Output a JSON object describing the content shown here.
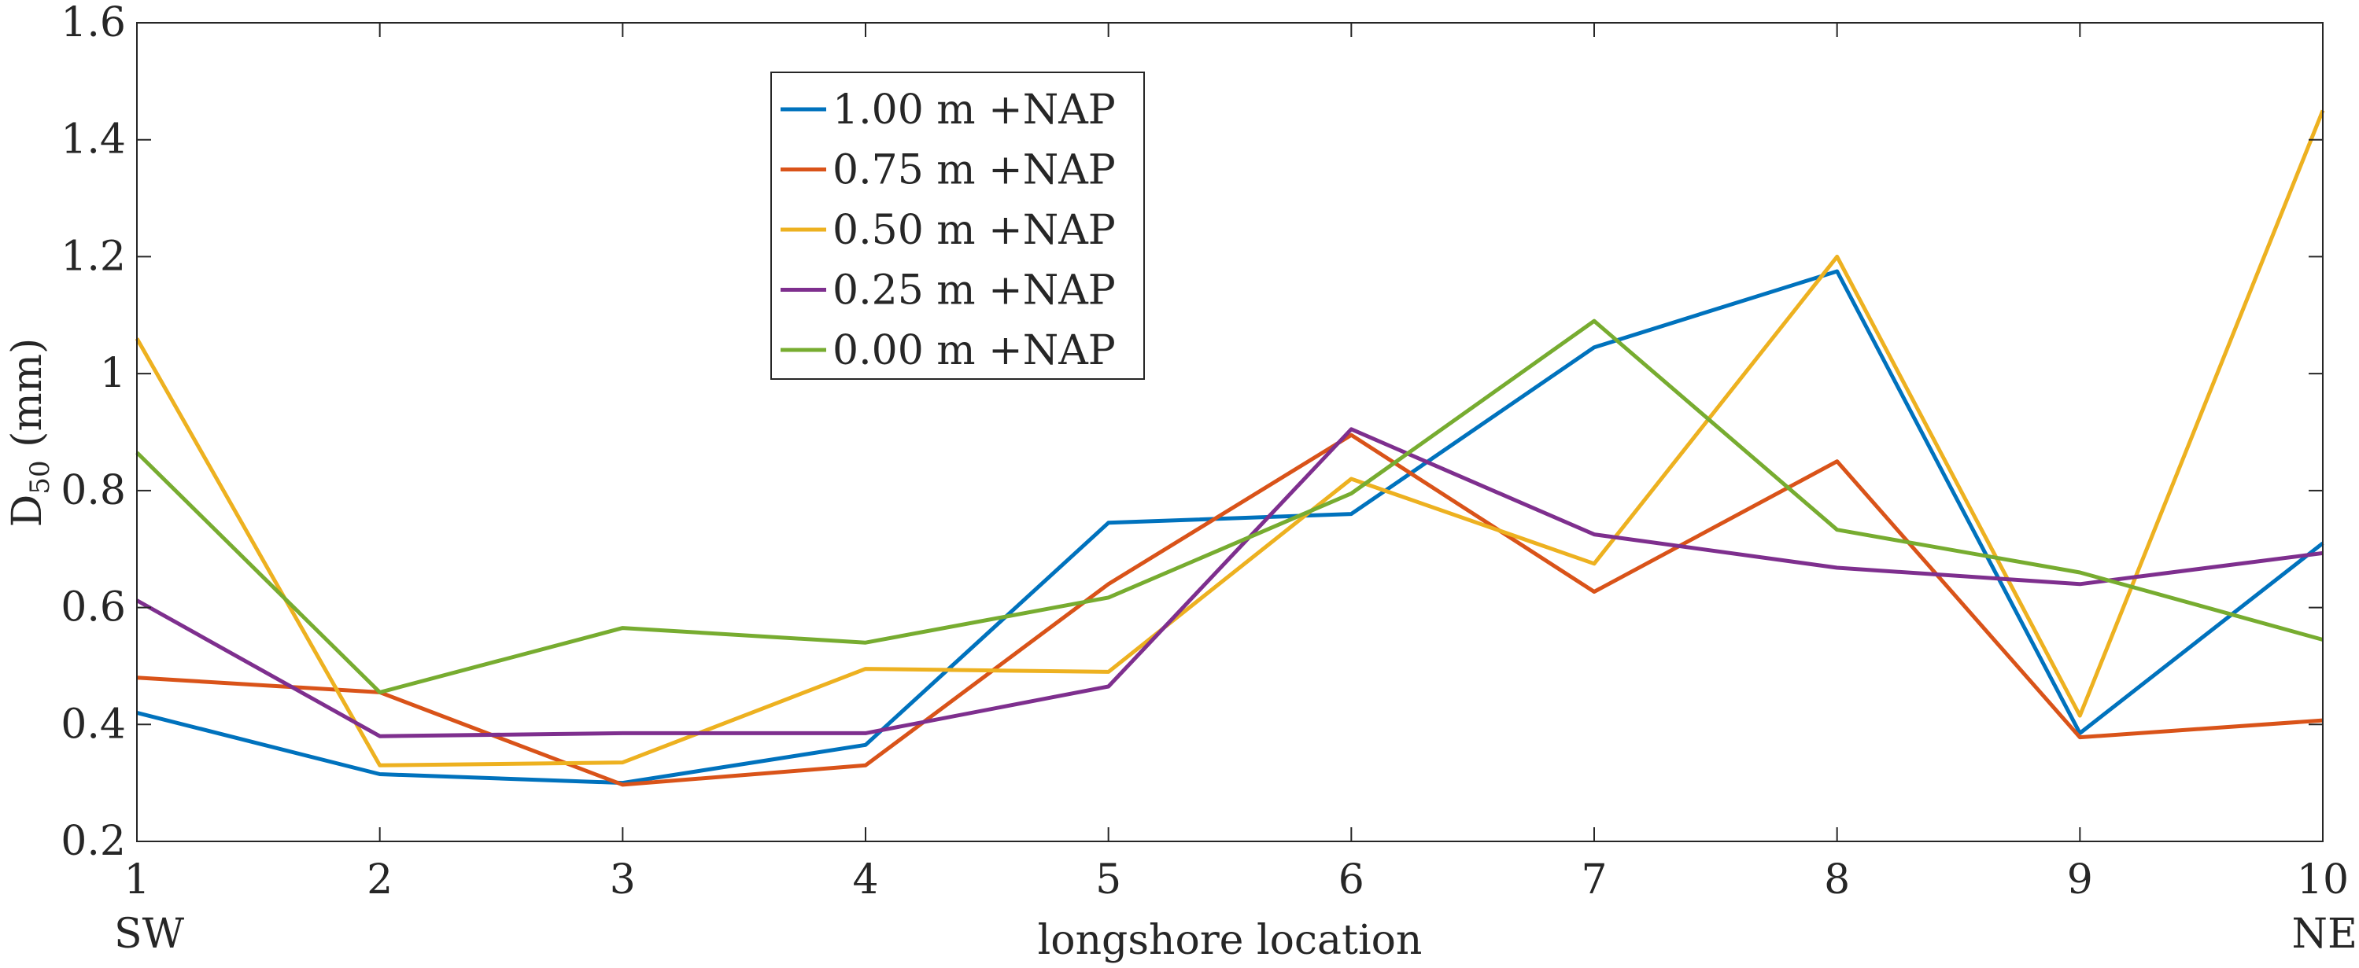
{
  "chart_data": {
    "type": "line",
    "title": "",
    "xlabel": "longshore location",
    "ylabel_main": "D",
    "ylabel_sub": "50",
    "ylabel_unit": " (mm)",
    "x": [
      1,
      2,
      3,
      4,
      5,
      6,
      7,
      8,
      9,
      10
    ],
    "xlim": [
      1,
      10
    ],
    "ylim": [
      0.2,
      1.6
    ],
    "x_ticks": [
      "1",
      "2",
      "3",
      "4",
      "5",
      "6",
      "7",
      "8",
      "9",
      "10"
    ],
    "y_ticks": [
      "0.2",
      "0.4",
      "0.6",
      "0.8",
      "1",
      "1.2",
      "1.4",
      "1.6"
    ],
    "x_end_labels": {
      "left": "SW",
      "right": "NE"
    },
    "grid": false,
    "legend_position": "top-center",
    "series": [
      {
        "name": "1.00 m +NAP",
        "color": "#0072BD",
        "values": [
          0.42,
          0.315,
          0.3,
          0.365,
          0.745,
          0.76,
          1.045,
          1.175,
          0.385,
          0.71
        ]
      },
      {
        "name": "0.75 m +NAP",
        "color": "#D95319",
        "values": [
          0.48,
          0.455,
          0.297,
          0.33,
          0.64,
          0.895,
          0.627,
          0.85,
          0.378,
          0.407
        ]
      },
      {
        "name": "0.50 m +NAP",
        "color": "#EDB120",
        "values": [
          1.06,
          0.33,
          0.335,
          0.495,
          0.49,
          0.82,
          0.675,
          1.2,
          0.415,
          1.45
        ]
      },
      {
        "name": "0.25 m +NAP",
        "color": "#7E2F8E",
        "values": [
          0.612,
          0.38,
          0.385,
          0.385,
          0.465,
          0.905,
          0.725,
          0.668,
          0.64,
          0.693
        ]
      },
      {
        "name": "0.00 m +NAP",
        "color": "#77AC30",
        "values": [
          0.865,
          0.455,
          0.565,
          0.54,
          0.617,
          0.795,
          1.09,
          0.733,
          0.66,
          0.545
        ]
      }
    ]
  }
}
